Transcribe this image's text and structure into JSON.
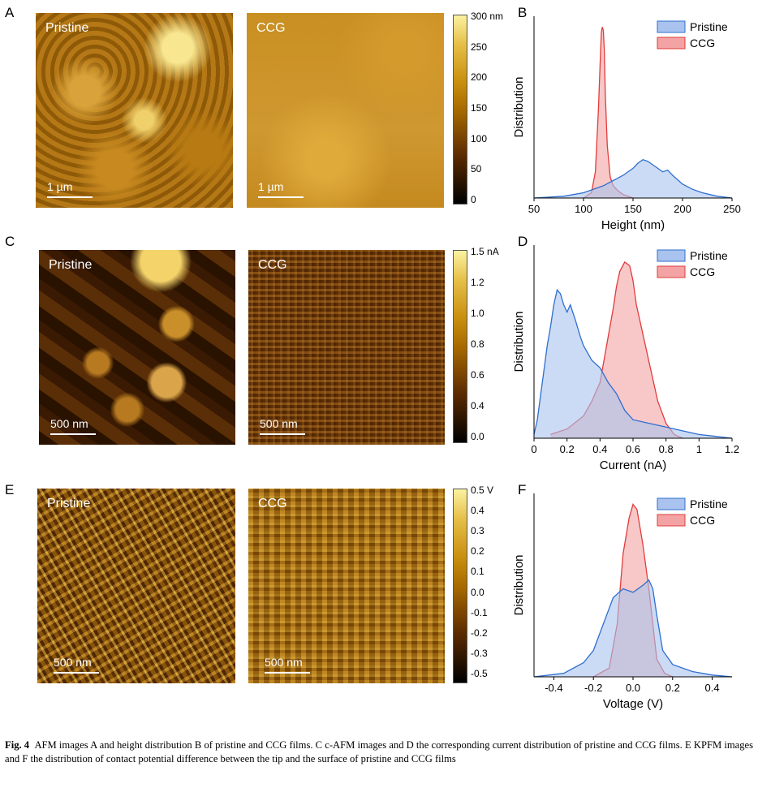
{
  "panels": {
    "A": {
      "letter": "A",
      "left_label": "Pristine",
      "right_label": "CCG",
      "left_scale": "1 µm",
      "right_scale": "1 µm",
      "colorbar": {
        "ticks": [
          "300 nm",
          "250",
          "200",
          "150",
          "100",
          "50",
          "0"
        ],
        "stops": [
          "#000000",
          "#5a2a00",
          "#a86a00",
          "#c98f10",
          "#e6c04a",
          "#fbf2a0"
        ]
      }
    },
    "C": {
      "letter": "C",
      "left_label": "Pristine",
      "right_label": "CCG",
      "left_scale": "500 nm",
      "right_scale": "500 nm",
      "colorbar": {
        "ticks": [
          "1.5 nA",
          "1.2",
          "1.0",
          "0.8",
          "0.6",
          "0.4",
          "0.0"
        ],
        "stops": [
          "#000000",
          "#5a2a00",
          "#a86a00",
          "#c98f10",
          "#e6c04a",
          "#fbf2a0"
        ]
      }
    },
    "E": {
      "letter": "E",
      "left_label": "Pristine",
      "right_label": "CCG",
      "left_scale": "500 nm",
      "right_scale": "500 nm",
      "colorbar": {
        "ticks": [
          "0.5 V",
          "0.4",
          "0.3",
          "0.2",
          "0.1",
          "0.0",
          "-0.1",
          "-0.2",
          "-0.3",
          "-0.5"
        ],
        "stops": [
          "#000000",
          "#5a2a00",
          "#a86a00",
          "#c98f10",
          "#e6c04a",
          "#fbf2a0"
        ]
      }
    }
  },
  "colors": {
    "pristine": "#2f6fcf",
    "pristine_fill": "#a9c3ee",
    "ccg": "#e23b3b",
    "ccg_fill": "#f3a3a3"
  },
  "chart_data": [
    {
      "panel": "B",
      "type": "area",
      "xlabel": "Height (nm)",
      "ylabel": "Distribution",
      "xlim": [
        50,
        250
      ],
      "xticks": [
        50,
        100,
        150,
        200,
        250
      ],
      "ylim": [
        0,
        1.0
      ],
      "legend": "top-right",
      "series": [
        {
          "name": "Pristine",
          "x": [
            50,
            80,
            100,
            110,
            120,
            130,
            140,
            150,
            155,
            160,
            165,
            170,
            175,
            180,
            185,
            190,
            200,
            210,
            220,
            235,
            250
          ],
          "y": [
            0.0,
            0.01,
            0.03,
            0.05,
            0.07,
            0.1,
            0.13,
            0.17,
            0.2,
            0.22,
            0.21,
            0.19,
            0.17,
            0.15,
            0.16,
            0.13,
            0.08,
            0.05,
            0.03,
            0.01,
            0.0
          ]
        },
        {
          "name": "CCG",
          "x": [
            100,
            108,
            112,
            115,
            117,
            118,
            119,
            120,
            121,
            122,
            124,
            127,
            130,
            135,
            140,
            150
          ],
          "y": [
            0.0,
            0.03,
            0.15,
            0.5,
            0.8,
            0.95,
            0.98,
            0.96,
            0.85,
            0.6,
            0.3,
            0.12,
            0.07,
            0.04,
            0.02,
            0.0
          ]
        }
      ]
    },
    {
      "panel": "D",
      "type": "area",
      "xlabel": "Current (nA)",
      "ylabel": "Distribution",
      "xlim": [
        0,
        1.2
      ],
      "xticks": [
        0,
        0.2,
        0.4,
        0.6,
        0.8,
        1,
        1.2
      ],
      "ylim": [
        0,
        1.0
      ],
      "legend": "top-right",
      "series": [
        {
          "name": "Pristine",
          "x": [
            0,
            0.02,
            0.05,
            0.08,
            0.1,
            0.12,
            0.14,
            0.16,
            0.18,
            0.2,
            0.22,
            0.25,
            0.28,
            0.3,
            0.35,
            0.4,
            0.45,
            0.5,
            0.55,
            0.6,
            0.7,
            0.8,
            0.9,
            1.0,
            1.1,
            1.2
          ],
          "y": [
            0.02,
            0.1,
            0.3,
            0.5,
            0.6,
            0.72,
            0.8,
            0.78,
            0.72,
            0.68,
            0.72,
            0.64,
            0.55,
            0.5,
            0.42,
            0.38,
            0.3,
            0.24,
            0.15,
            0.1,
            0.08,
            0.06,
            0.04,
            0.02,
            0.01,
            0.0
          ]
        },
        {
          "name": "CCG",
          "x": [
            0.1,
            0.2,
            0.3,
            0.35,
            0.4,
            0.42,
            0.45,
            0.48,
            0.5,
            0.52,
            0.55,
            0.58,
            0.6,
            0.62,
            0.65,
            0.7,
            0.75,
            0.8,
            0.85,
            0.9
          ],
          "y": [
            0.02,
            0.05,
            0.12,
            0.2,
            0.3,
            0.4,
            0.55,
            0.7,
            0.82,
            0.9,
            0.95,
            0.93,
            0.85,
            0.72,
            0.6,
            0.4,
            0.2,
            0.08,
            0.02,
            0.0
          ]
        }
      ]
    },
    {
      "panel": "F",
      "type": "area",
      "xlabel": "Voltage (V)",
      "ylabel": "Distribution",
      "xlim": [
        -0.5,
        0.5
      ],
      "xticks": [
        -0.4,
        -0.2,
        0.0,
        0.2,
        0.4
      ],
      "xticklabels": [
        "-0.4",
        "-0.2",
        "0.0",
        "0.2",
        "0.4"
      ],
      "ylim": [
        0,
        1.0
      ],
      "legend": "top-right",
      "series": [
        {
          "name": "Pristine",
          "x": [
            -0.5,
            -0.35,
            -0.25,
            -0.2,
            -0.15,
            -0.1,
            -0.05,
            0.0,
            0.05,
            0.08,
            0.1,
            0.12,
            0.15,
            0.2,
            0.3,
            0.4,
            0.5
          ],
          "y": [
            0.0,
            0.02,
            0.08,
            0.15,
            0.3,
            0.45,
            0.5,
            0.48,
            0.52,
            0.55,
            0.5,
            0.35,
            0.15,
            0.07,
            0.03,
            0.01,
            0.0
          ]
        },
        {
          "name": "CCG",
          "x": [
            -0.2,
            -0.12,
            -0.08,
            -0.05,
            -0.02,
            0.0,
            0.02,
            0.05,
            0.08,
            0.1,
            0.12,
            0.16,
            0.2
          ],
          "y": [
            0.0,
            0.05,
            0.3,
            0.7,
            0.9,
            0.98,
            0.95,
            0.75,
            0.5,
            0.3,
            0.1,
            0.02,
            0.0
          ]
        }
      ]
    }
  ],
  "caption": {
    "fig": "Fig. 4",
    "text": "AFM images A and height distribution B of pristine and CCG films. C c-AFM images and D the corresponding current distribution of pristine and CCG films. E KPFM images and F the distribution of contact potential difference between the tip and the surface of pristine and CCG films"
  }
}
